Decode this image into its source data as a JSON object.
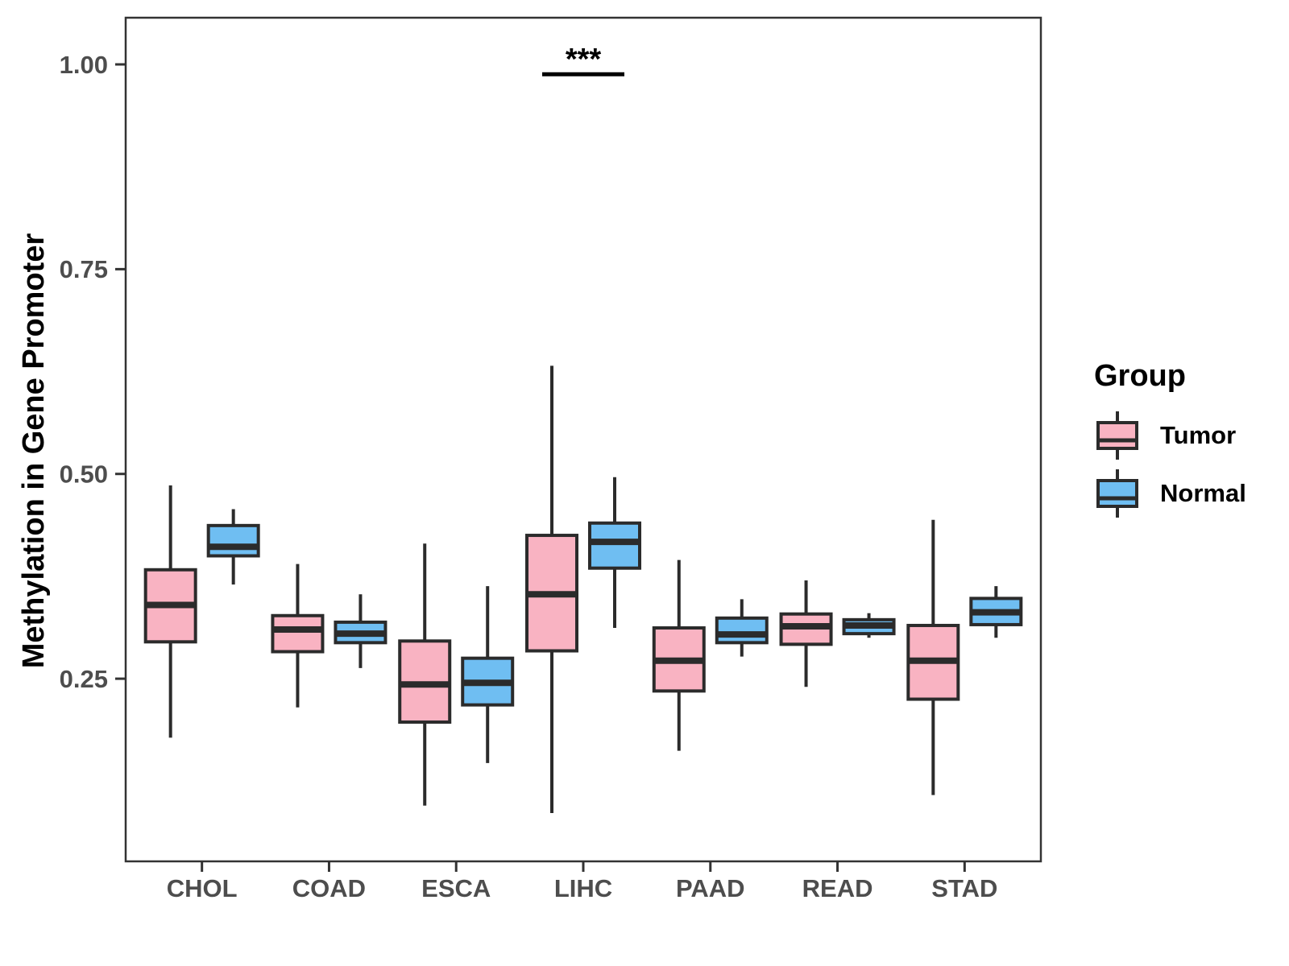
{
  "figure": {
    "y_axis_title": "Methylation in Gene Promoter"
  },
  "legend": {
    "title": "Group",
    "items": [
      {
        "label": "Tumor",
        "color": "#F9B3C2"
      },
      {
        "label": "Normal",
        "color": "#6FBEF2"
      }
    ]
  },
  "style": {
    "background": "#FFFFFF",
    "panel_border": "#333333",
    "box_stroke": "#2B2B2B",
    "median_stroke": "#2B2B2B",
    "axis_tick_color": "#333333",
    "axis_text_color": "#4D4D4D",
    "annotation_color": "#000000"
  },
  "chart_data": {
    "type": "boxplot",
    "title": "",
    "xlabel": "",
    "ylabel": "Methylation in Gene Promoter",
    "categories": [
      "CHOL",
      "COAD",
      "ESCA",
      "LIHC",
      "PAAD",
      "READ",
      "STAD"
    ],
    "y_tick_labels": [
      "1.00",
      "0.75",
      "0.50",
      "0.25"
    ],
    "y_tick_values": [
      1.0,
      0.75,
      0.5,
      0.25
    ],
    "ylim": [
      0.027,
      1.057
    ],
    "grid": false,
    "legend_position": "right",
    "series": [
      {
        "name": "Tumor",
        "color": "#F9B3C2",
        "boxes": [
          {
            "low": 0.178,
            "q1": 0.295,
            "median": 0.34,
            "q3": 0.383,
            "high": 0.486
          },
          {
            "low": 0.215,
            "q1": 0.283,
            "median": 0.31,
            "q3": 0.327,
            "high": 0.39
          },
          {
            "low": 0.095,
            "q1": 0.197,
            "median": 0.243,
            "q3": 0.296,
            "high": 0.415
          },
          {
            "low": 0.086,
            "q1": 0.284,
            "median": 0.353,
            "q3": 0.425,
            "high": 0.632
          },
          {
            "low": 0.162,
            "q1": 0.235,
            "median": 0.272,
            "q3": 0.312,
            "high": 0.395
          },
          {
            "low": 0.24,
            "q1": 0.292,
            "median": 0.314,
            "q3": 0.329,
            "high": 0.37
          },
          {
            "low": 0.108,
            "q1": 0.225,
            "median": 0.272,
            "q3": 0.315,
            "high": 0.444
          }
        ]
      },
      {
        "name": "Normal",
        "color": "#6FBEF2",
        "boxes": [
          {
            "low": 0.365,
            "q1": 0.4,
            "median": 0.411,
            "q3": 0.437,
            "high": 0.457
          },
          {
            "low": 0.263,
            "q1": 0.294,
            "median": 0.305,
            "q3": 0.319,
            "high": 0.353
          },
          {
            "low": 0.147,
            "q1": 0.218,
            "median": 0.245,
            "q3": 0.275,
            "high": 0.363
          },
          {
            "low": 0.312,
            "q1": 0.385,
            "median": 0.417,
            "q3": 0.44,
            "high": 0.496
          },
          {
            "low": 0.277,
            "q1": 0.294,
            "median": 0.304,
            "q3": 0.324,
            "high": 0.347
          },
          {
            "low": 0.3,
            "q1": 0.305,
            "median": 0.315,
            "q3": 0.322,
            "high": 0.33
          },
          {
            "low": 0.3,
            "q1": 0.316,
            "median": 0.331,
            "q3": 0.348,
            "high": 0.363
          }
        ]
      }
    ],
    "annotations": [
      {
        "label": "***",
        "category": "LIHC",
        "line_y": 0.988
      }
    ]
  }
}
